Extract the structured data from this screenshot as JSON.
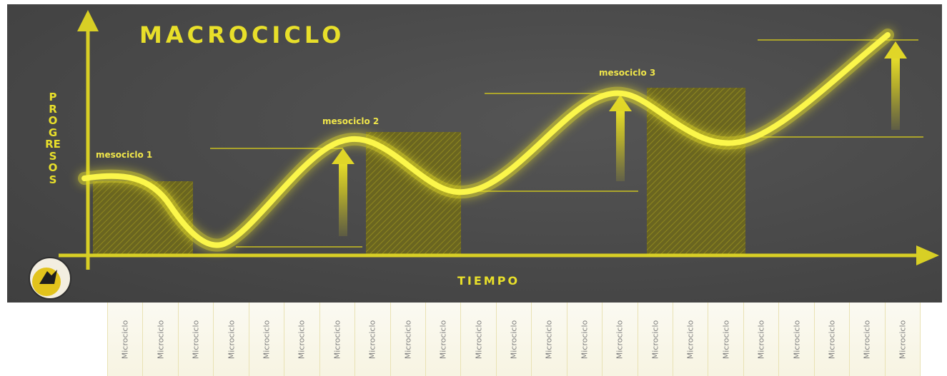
{
  "title": "MACROCICLO",
  "y_axis_label": "PROGRESOS",
  "x_axis_label": "TIEMPO",
  "phases": [
    {
      "label": "mesociclo 1"
    },
    {
      "label": "mesociclo 2"
    },
    {
      "label": "mesociclo 3"
    }
  ],
  "microcycles": [
    "Microciclo",
    "Microciclo",
    "Microciclo",
    "Microciclo",
    "Microciclo",
    "Microciclo",
    "Microciclo",
    "Microciclo",
    "Microciclo",
    "Microciclo",
    "Microciclo",
    "Microciclo",
    "Microciclo",
    "Microciclo",
    "Microciclo",
    "Microciclo",
    "Microciclo",
    "Microciclo",
    "Microciclo",
    "Microciclo",
    "Microciclo",
    "Microciclo",
    "Microciclo"
  ],
  "colors": {
    "background": "#4a4a4a",
    "accent": "#e8df2a",
    "curve": "#f5ee2f",
    "strip_text": "#7f7f7f"
  }
}
